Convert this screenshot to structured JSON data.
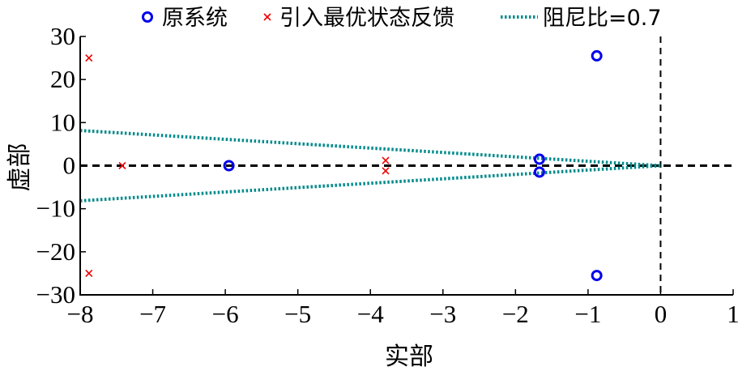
{
  "chart_data": {
    "type": "scatter",
    "xlabel": "实部",
    "ylabel": "虚部",
    "xlim": [
      -8,
      1
    ],
    "ylim": [
      -30,
      30
    ],
    "x_ticks": [
      -8,
      -7,
      -6,
      -5,
      -4,
      -3,
      -2,
      -1,
      0,
      1
    ],
    "y_ticks": [
      30,
      20,
      10,
      0,
      -10,
      -20,
      -30
    ],
    "x_tick_labels": [
      "−8",
      "−7",
      "−6",
      "−5",
      "−4",
      "−3",
      "−2",
      "−1",
      "0",
      "1"
    ],
    "y_tick_labels": [
      "30",
      "20",
      "10",
      "0",
      "−10",
      "−20",
      "−30"
    ],
    "grid": false,
    "legend_position": "top",
    "series": [
      {
        "name": "原系统",
        "marker": "circle",
        "color": "#0000ee",
        "points": [
          {
            "x": -0.88,
            "y": 25.5
          },
          {
            "x": -0.88,
            "y": -25.5
          },
          {
            "x": -5.95,
            "y": 0
          },
          {
            "x": -1.67,
            "y": 1.5
          },
          {
            "x": -1.67,
            "y": -1.5
          }
        ]
      },
      {
        "name": "引入最优状态反馈",
        "marker": "x",
        "color": "#ee0000",
        "points": [
          {
            "x": -7.88,
            "y": 25
          },
          {
            "x": -7.88,
            "y": -25
          },
          {
            "x": -7.42,
            "y": 0
          },
          {
            "x": -3.79,
            "y": 1.2
          },
          {
            "x": -3.79,
            "y": -1.2
          }
        ]
      },
      {
        "name": "阻尼比=0.7",
        "style": "dotted-line",
        "color": "#008b8b",
        "lines": [
          {
            "x": [
              -8,
              0
            ],
            "y": [
              8.16,
              0
            ]
          },
          {
            "x": [
              -8,
              0
            ],
            "y": [
              -8.16,
              0
            ]
          }
        ]
      }
    ],
    "reference_lines": [
      {
        "axis": "y",
        "value": 0,
        "style": "dashed",
        "color": "#000000"
      },
      {
        "axis": "x",
        "value": 0,
        "style": "dashed",
        "color": "#000000"
      }
    ]
  }
}
